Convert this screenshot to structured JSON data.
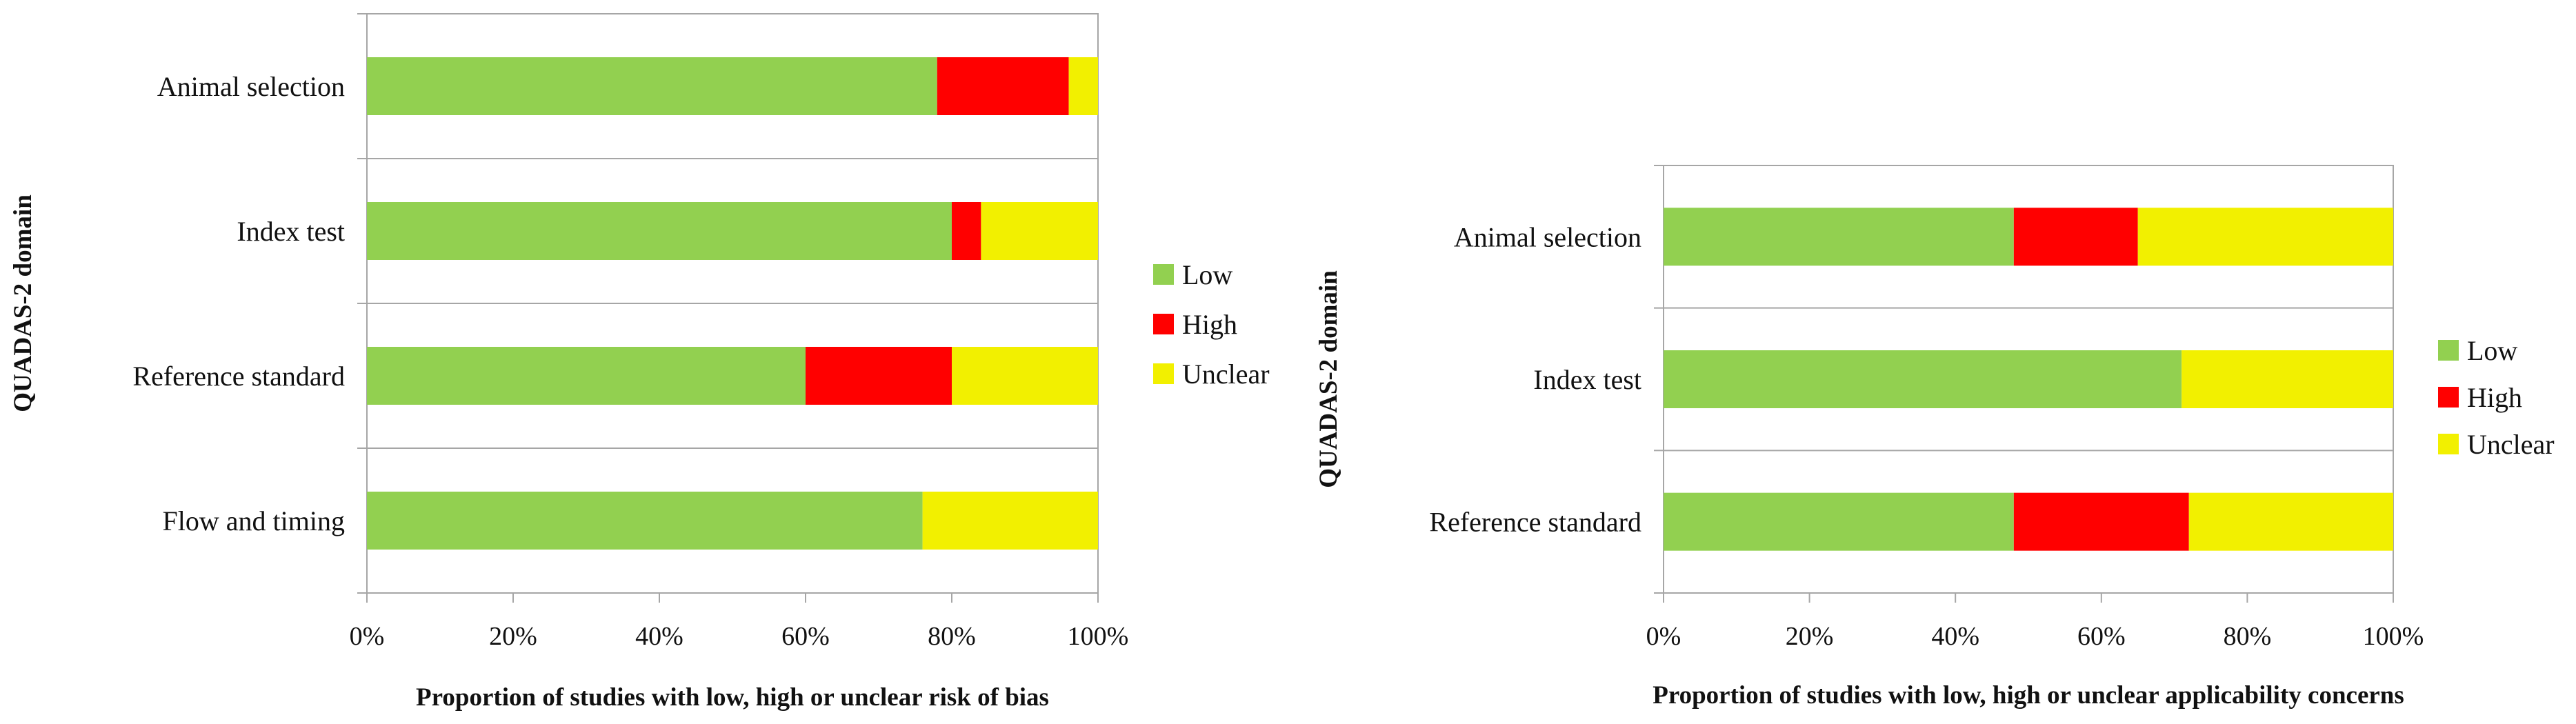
{
  "chart_data": [
    {
      "type": "bar",
      "orientation": "horizontal",
      "stacked": true,
      "categories": [
        "Animal selection",
        "Index test",
        "Reference standard",
        "Flow and timing"
      ],
      "series": [
        {
          "name": "Low",
          "values": [
            78,
            80,
            60,
            76
          ]
        },
        {
          "name": "High",
          "values": [
            18,
            4,
            20,
            0
          ]
        },
        {
          "name": "Unclear",
          "values": [
            4,
            16,
            20,
            24
          ]
        }
      ],
      "xlabel": "Proportion of studies with low, high or unclear risk of bias",
      "ylabel": "QUADAS-2 domain",
      "xlim": [
        0,
        100
      ],
      "x_ticks": [
        "0%",
        "20%",
        "40%",
        "60%",
        "80%",
        "100%"
      ],
      "legend": "right",
      "grid": "category separators"
    },
    {
      "type": "bar",
      "orientation": "horizontal",
      "stacked": true,
      "categories": [
        "Animal selection",
        "Index test",
        "Reference standard"
      ],
      "series": [
        {
          "name": "Low",
          "values": [
            48,
            71,
            48
          ]
        },
        {
          "name": "High",
          "values": [
            17,
            0,
            24
          ]
        },
        {
          "name": "Unclear",
          "values": [
            35,
            29,
            28
          ]
        }
      ],
      "xlabel": "Proportion of studies with low, high or unclear applicability concerns",
      "ylabel": "QUADAS-2 domain",
      "xlim": [
        0,
        100
      ],
      "x_ticks": [
        "0%",
        "20%",
        "40%",
        "60%",
        "80%",
        "100%"
      ],
      "legend": "right",
      "grid": "category separators"
    }
  ],
  "colors": {
    "Low": "#92d050",
    "High": "#ff0000",
    "Unclear": "#f2f000"
  }
}
